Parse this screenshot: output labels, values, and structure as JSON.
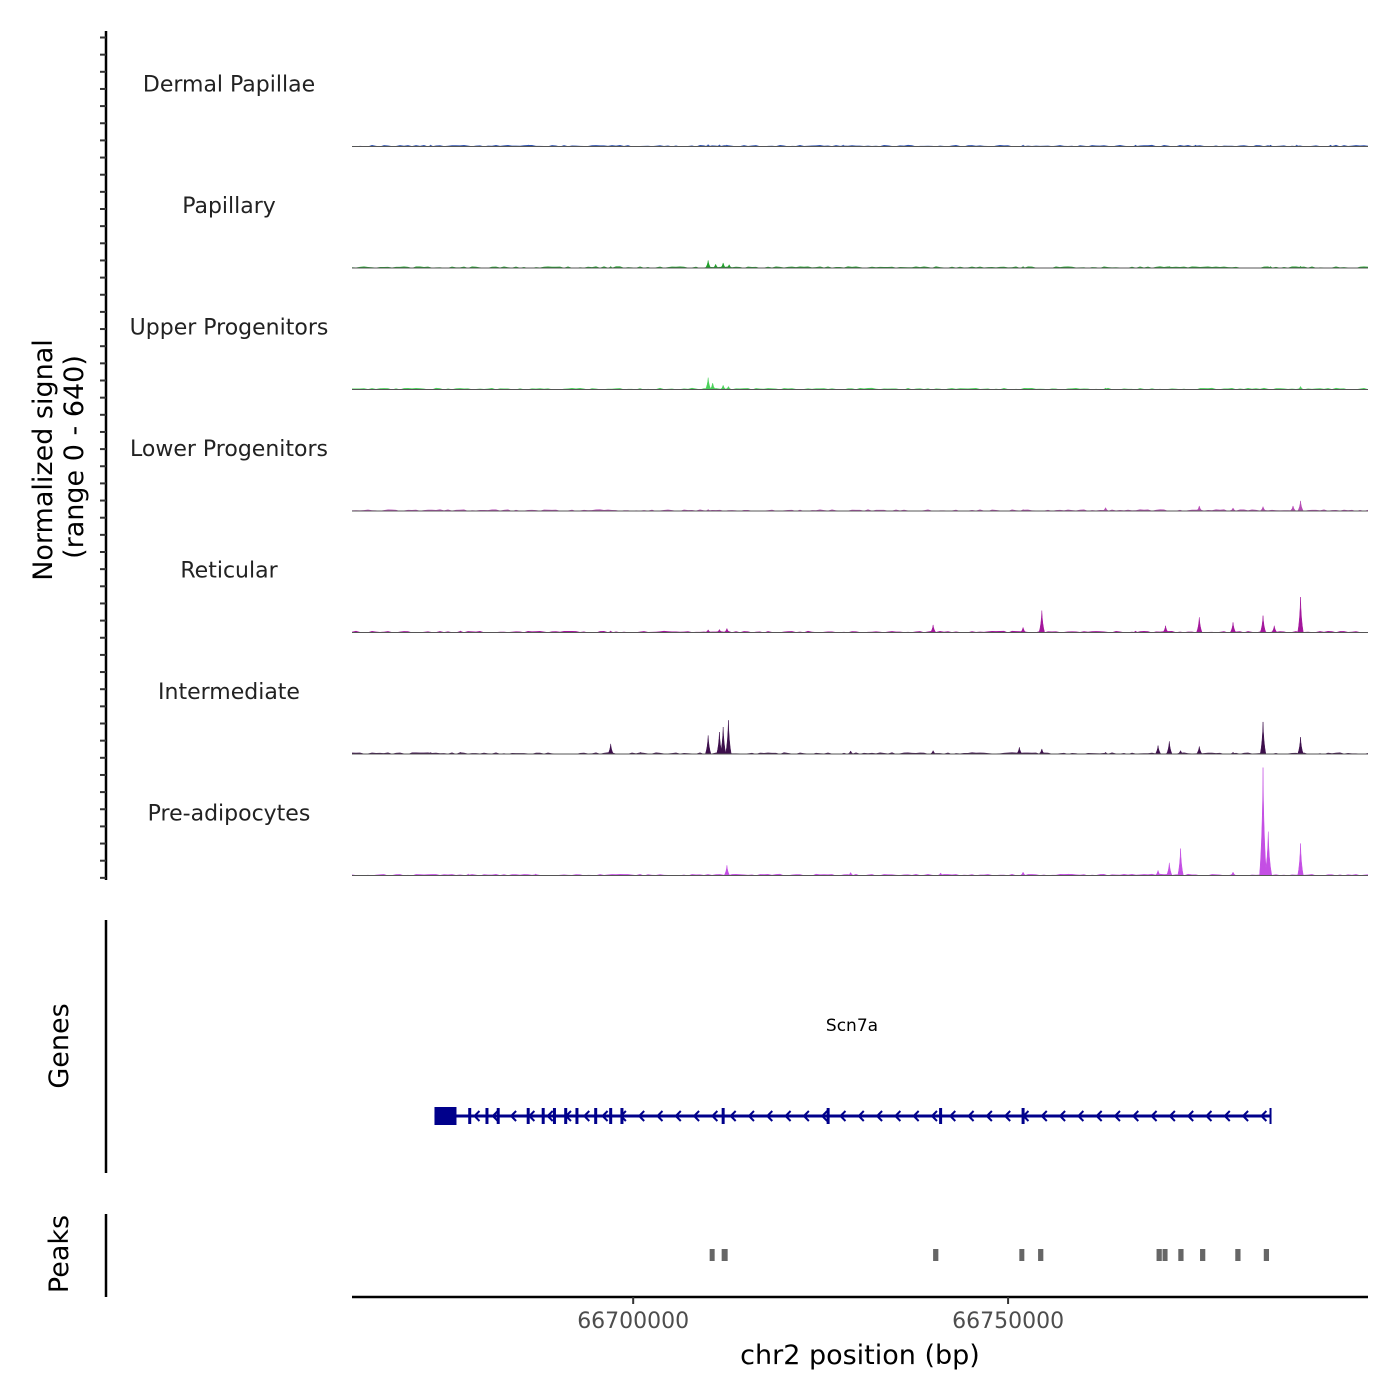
{
  "chart_data": {
    "type": "area",
    "title": "",
    "chromosome": "chr2",
    "xlabel": "chr2 position (bp)",
    "xlim": [
      66662500,
      66798000
    ],
    "x_ticks": [
      66700000,
      66750000
    ],
    "x_tick_labels": [
      "66700000",
      "66750000"
    ],
    "ylabel_line1": "Normalized signal",
    "ylabel_line2": "(range 0 - 640)",
    "ylim": [
      0,
      640
    ],
    "genes_label": "Genes",
    "peaks_label": "Peaks",
    "tracks": [
      {
        "name": "Dermal Papillae",
        "color": "#2a4fb0",
        "peaks": [
          [
            66673000,
            3
          ],
          [
            66686000,
            2
          ],
          [
            66710000,
            12
          ],
          [
            66711500,
            10
          ],
          [
            66712500,
            8
          ],
          [
            66728000,
            3
          ],
          [
            66752000,
            3
          ],
          [
            66767000,
            2
          ],
          [
            66775000,
            3
          ],
          [
            66785000,
            3
          ],
          [
            66788500,
            6
          ],
          [
            66793000,
            3
          ]
        ]
      },
      {
        "name": "Papillary",
        "color": "#1fa02a",
        "peaks": [
          [
            66697000,
            5
          ],
          [
            66710000,
            45
          ],
          [
            66711000,
            22
          ],
          [
            66712000,
            30
          ],
          [
            66712800,
            20
          ],
          [
            66752000,
            4
          ],
          [
            66771500,
            9
          ],
          [
            66785000,
            8
          ],
          [
            66789000,
            10
          ]
        ]
      },
      {
        "name": "Upper Progenitors",
        "color": "#4bd15a",
        "peaks": [
          [
            66710000,
            70
          ],
          [
            66710600,
            38
          ],
          [
            66712000,
            25
          ],
          [
            66712700,
            18
          ],
          [
            66763000,
            6
          ],
          [
            66789000,
            18
          ]
        ]
      },
      {
        "name": "Lower Progenitors",
        "color": "#b64db5",
        "peaks": [
          [
            66710000,
            5
          ],
          [
            66752000,
            6
          ],
          [
            66763000,
            20
          ],
          [
            66775500,
            30
          ],
          [
            66780000,
            18
          ],
          [
            66784000,
            26
          ],
          [
            66788000,
            30
          ],
          [
            66789000,
            60
          ]
        ]
      },
      {
        "name": "Reticular",
        "color": "#a3169c",
        "peaks": [
          [
            66677000,
            8
          ],
          [
            66697000,
            8
          ],
          [
            66710000,
            16
          ],
          [
            66711500,
            18
          ],
          [
            66712500,
            24
          ],
          [
            66740000,
            45
          ],
          [
            66752000,
            30
          ],
          [
            66754500,
            130
          ],
          [
            66767000,
            8
          ],
          [
            66771000,
            40
          ],
          [
            66775500,
            90
          ],
          [
            66780000,
            60
          ],
          [
            66784000,
            100
          ],
          [
            66785500,
            40
          ],
          [
            66789000,
            210
          ]
        ]
      },
      {
        "name": "Intermediate",
        "color": "#3d0f4c",
        "peaks": [
          [
            66673000,
            8
          ],
          [
            66677000,
            10
          ],
          [
            66697000,
            60
          ],
          [
            66701000,
            10
          ],
          [
            66710000,
            110
          ],
          [
            66711500,
            130
          ],
          [
            66712000,
            160
          ],
          [
            66712700,
            200
          ],
          [
            66729000,
            18
          ],
          [
            66740000,
            20
          ],
          [
            66751500,
            40
          ],
          [
            66754500,
            30
          ],
          [
            66763000,
            10
          ],
          [
            66770000,
            50
          ],
          [
            66771500,
            75
          ],
          [
            66773000,
            20
          ],
          [
            66775500,
            45
          ],
          [
            66780000,
            10
          ],
          [
            66784000,
            190
          ],
          [
            66789000,
            100
          ]
        ]
      },
      {
        "name": "Pre-adipocytes",
        "color": "#c44ee4",
        "peaks": [
          [
            66678000,
            6
          ],
          [
            66687000,
            8
          ],
          [
            66712500,
            60
          ],
          [
            66729000,
            18
          ],
          [
            66741000,
            15
          ],
          [
            66752000,
            20
          ],
          [
            66758000,
            8
          ],
          [
            66770000,
            30
          ],
          [
            66771500,
            75
          ],
          [
            66773000,
            160
          ],
          [
            66780000,
            20
          ],
          [
            66784000,
            640
          ],
          [
            66784700,
            260
          ],
          [
            66789000,
            190
          ]
        ]
      }
    ],
    "gene": {
      "name": "Scn7a",
      "strand": "-",
      "start": 66673500,
      "end": 66785000,
      "color": "#00008b",
      "exons": [
        66675500,
        66678200,
        66680500,
        66682000,
        66686000,
        66688000,
        66689500,
        66691000,
        66692500,
        66695000,
        66697000,
        66698500,
        66712000,
        66726000,
        66741000,
        66752000
      ]
    },
    "peak_regions": [
      [
        66710200,
        66710800
      ],
      [
        66711800,
        66712600
      ],
      [
        66740000,
        66740700
      ],
      [
        66751500,
        66752100
      ],
      [
        66754000,
        66754700
      ],
      [
        66769800,
        66770500
      ],
      [
        66770600,
        66771200
      ],
      [
        66772700,
        66773400
      ],
      [
        66775600,
        66776300
      ],
      [
        66780300,
        66781000
      ],
      [
        66784100,
        66784800
      ]
    ],
    "peak_color": "#666666"
  }
}
